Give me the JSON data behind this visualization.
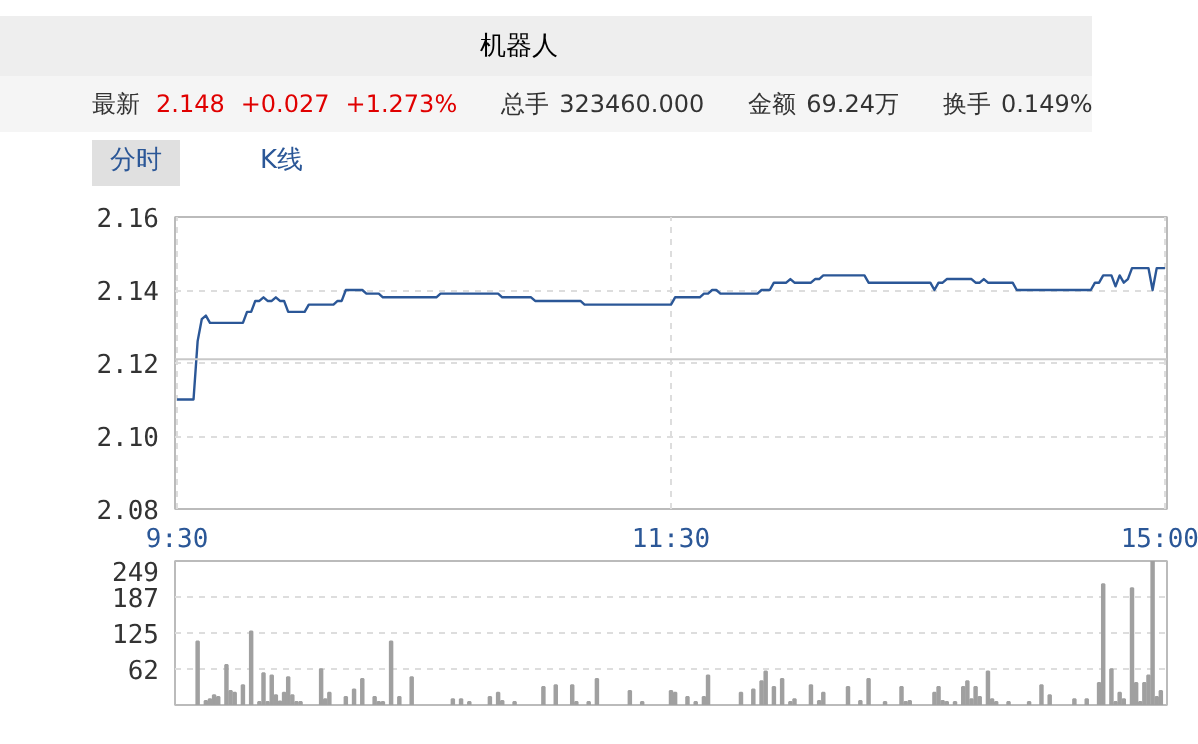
{
  "chart_data": [
    {
      "type": "line",
      "annotations": [
        "机器人",
        "最新",
        "2.148",
        "+0.027",
        "+1.273%",
        "总手",
        "323460.000",
        "金额",
        "69.24万",
        "换手",
        "0.149%",
        "分时",
        "K线"
      ],
      "categories": [
        "9:30",
        null,
        null,
        null,
        null,
        null,
        null,
        null,
        null,
        null,
        null,
        null,
        null,
        null,
        null,
        null,
        null,
        null,
        null,
        null,
        null,
        null,
        null,
        null,
        null,
        null,
        null,
        null,
        null,
        null,
        null,
        null,
        null,
        null,
        null,
        null,
        null,
        null,
        null,
        null,
        null,
        null,
        null,
        null,
        null,
        null,
        null,
        null,
        null,
        null,
        null,
        null,
        null,
        null,
        null,
        null,
        null,
        null,
        null,
        null,
        null,
        null,
        null,
        null,
        null,
        null,
        null,
        null,
        null,
        null,
        null,
        null,
        null,
        null,
        null,
        null,
        null,
        null,
        null,
        null,
        null,
        null,
        null,
        null,
        null,
        null,
        null,
        null,
        null,
        null,
        null,
        null,
        null,
        null,
        null,
        null,
        null,
        null,
        null,
        null,
        null,
        null,
        null,
        null,
        null,
        null,
        null,
        null,
        null,
        null,
        null,
        null,
        null,
        null,
        null,
        null,
        null,
        null,
        null,
        null,
        "11:30",
        null,
        null,
        null,
        null,
        null,
        null,
        null,
        null,
        null,
        null,
        null,
        null,
        null,
        null,
        null,
        null,
        null,
        null,
        null,
        null,
        null,
        null,
        null,
        null,
        null,
        null,
        null,
        null,
        null,
        null,
        null,
        null,
        null,
        null,
        null,
        null,
        null,
        null,
        null,
        null,
        null,
        null,
        null,
        null,
        null,
        null,
        null,
        null,
        null,
        null,
        null,
        null,
        null,
        null,
        null,
        null,
        null,
        null,
        null,
        null,
        null,
        null,
        null,
        null,
        null,
        null,
        null,
        null,
        null,
        null,
        null,
        null,
        null,
        null,
        null,
        null,
        null,
        null,
        null,
        null,
        null,
        null,
        null,
        null,
        null,
        null,
        null,
        null,
        null,
        null,
        null,
        null,
        null,
        null,
        null,
        null,
        null,
        null,
        null,
        null,
        null,
        null,
        null,
        null,
        null,
        null,
        null,
        null,
        null,
        null,
        null,
        null,
        null,
        null,
        null,
        null,
        null,
        null,
        null,
        "15:00"
      ],
      "values": [
        2.11,
        2.11,
        2.11,
        2.11,
        2.11,
        2.126,
        2.132,
        2.133,
        2.131,
        2.131,
        2.131,
        2.131,
        2.131,
        2.131,
        2.131,
        2.131,
        2.131,
        2.134,
        2.134,
        2.137,
        2.137,
        2.138,
        2.137,
        2.137,
        2.138,
        2.137,
        2.137,
        2.134,
        2.134,
        2.134,
        2.134,
        2.134,
        2.136,
        2.136,
        2.136,
        2.136,
        2.136,
        2.136,
        2.136,
        2.137,
        2.137,
        2.14,
        2.14,
        2.14,
        2.14,
        2.14,
        2.139,
        2.139,
        2.139,
        2.139,
        2.138,
        2.138,
        2.138,
        2.138,
        2.138,
        2.138,
        2.138,
        2.138,
        2.138,
        2.138,
        2.138,
        2.138,
        2.138,
        2.138,
        2.139,
        2.139,
        2.139,
        2.139,
        2.139,
        2.139,
        2.139,
        2.139,
        2.139,
        2.139,
        2.139,
        2.139,
        2.139,
        2.139,
        2.139,
        2.138,
        2.138,
        2.138,
        2.138,
        2.138,
        2.138,
        2.138,
        2.138,
        2.137,
        2.137,
        2.137,
        2.137,
        2.137,
        2.137,
        2.137,
        2.137,
        2.137,
        2.137,
        2.137,
        2.137,
        2.136,
        2.136,
        2.136,
        2.136,
        2.136,
        2.136,
        2.136,
        2.136,
        2.136,
        2.136,
        2.136,
        2.136,
        2.136,
        2.136,
        2.136,
        2.136,
        2.136,
        2.136,
        2.136,
        2.136,
        2.136,
        2.136,
        2.138,
        2.138,
        2.138,
        2.138,
        2.138,
        2.138,
        2.138,
        2.139,
        2.139,
        2.14,
        2.14,
        2.139,
        2.139,
        2.139,
        2.139,
        2.139,
        2.139,
        2.139,
        2.139,
        2.139,
        2.139,
        2.14,
        2.14,
        2.14,
        2.142,
        2.142,
        2.142,
        2.142,
        2.143,
        2.142,
        2.142,
        2.142,
        2.142,
        2.142,
        2.143,
        2.143,
        2.144,
        2.144,
        2.144,
        2.144,
        2.144,
        2.144,
        2.144,
        2.144,
        2.144,
        2.144,
        2.144,
        2.142,
        2.142,
        2.142,
        2.142,
        2.142,
        2.142,
        2.142,
        2.142,
        2.142,
        2.142,
        2.142,
        2.142,
        2.142,
        2.142,
        2.142,
        2.142,
        2.14,
        2.142,
        2.142,
        2.143,
        2.143,
        2.143,
        2.143,
        2.143,
        2.143,
        2.143,
        2.142,
        2.142,
        2.143,
        2.142,
        2.142,
        2.142,
        2.142,
        2.142,
        2.142,
        2.142,
        2.14,
        2.14,
        2.14,
        2.14,
        2.14,
        2.14,
        2.14,
        2.14,
        2.14,
        2.14,
        2.14,
        2.14,
        2.14,
        2.14,
        2.14,
        2.14,
        2.14,
        2.14,
        2.14,
        2.142,
        2.142,
        2.144,
        2.144,
        2.144,
        2.141,
        2.144,
        2.142,
        2.143,
        2.146,
        2.146,
        2.146,
        2.146,
        2.146,
        2.14,
        2.146,
        2.146,
        2.146
      ],
      "color": "#2b5797",
      "ylim": [
        2.08,
        2.16
      ],
      "yticks": [
        {
          "value": 2.08,
          "label": "2.08"
        },
        {
          "value": 2.1,
          "label": "2.10"
        },
        {
          "value": 2.12,
          "label": "2.12"
        },
        {
          "value": 2.14,
          "label": "2.14"
        },
        {
          "value": 2.16,
          "label": "2.16"
        }
      ],
      "grid": true,
      "ref_lines": [
        {
          "axis": "y",
          "value": 2.121,
          "color": "#c8c8c8",
          "line_style": "solid"
        }
      ]
    },
    {
      "type": "bar",
      "color": "#a0a0a0",
      "categories": [
        null,
        null,
        null,
        null,
        null,
        null,
        null,
        null,
        null,
        null,
        null,
        null,
        null,
        null,
        null,
        null,
        null,
        null,
        null,
        null,
        null,
        null,
        null,
        null,
        null,
        null,
        null,
        null,
        null,
        null,
        null,
        null,
        null,
        null,
        null,
        null,
        null,
        null,
        null,
        null,
        null,
        null,
        null,
        null,
        null,
        null,
        null,
        null,
        null,
        null,
        null,
        null,
        null,
        null,
        null,
        null,
        null,
        null,
        null,
        null,
        null,
        null,
        null,
        null,
        null,
        null,
        null,
        null,
        null,
        null,
        null,
        null,
        null,
        null,
        null,
        null,
        null,
        null,
        null,
        null,
        null,
        null,
        null,
        null,
        null,
        null,
        null,
        null,
        null,
        null,
        null,
        null,
        null,
        null,
        null,
        null,
        null,
        null,
        null,
        null,
        null,
        null,
        null,
        null,
        null,
        null,
        null,
        null,
        null,
        null,
        null,
        null,
        null,
        null,
        null,
        null,
        null,
        null,
        null,
        null,
        null,
        null,
        null,
        null,
        null,
        null,
        null,
        null,
        null,
        null,
        null,
        null,
        null,
        null,
        null,
        null,
        null,
        null,
        null,
        null,
        null,
        null,
        null,
        null,
        null,
        null,
        null,
        null,
        null,
        null,
        null,
        null,
        null,
        null,
        null,
        null,
        null,
        null,
        null,
        null,
        null,
        null,
        null,
        null,
        null,
        null,
        null,
        null,
        null,
        null,
        null,
        null,
        null,
        null,
        null,
        null,
        null,
        null,
        null,
        null,
        null,
        null,
        null,
        null,
        null,
        null,
        null,
        null,
        null,
        null,
        null,
        null,
        null,
        null,
        null,
        null,
        null,
        null,
        null,
        null,
        null,
        null,
        null,
        null,
        null,
        null,
        null,
        null,
        null,
        null,
        null,
        null,
        null,
        null,
        null,
        null,
        null,
        null,
        null,
        null,
        null,
        null,
        null,
        null,
        null,
        null,
        null,
        null,
        null,
        null,
        null,
        null,
        null,
        null,
        null,
        null,
        null,
        null,
        null,
        null,
        null
      ],
      "values": [
        null,
        null,
        null,
        null,
        null,
        110,
        null,
        7,
        10,
        17,
        14,
        null,
        69,
        24,
        21,
        null,
        34,
        null,
        127,
        null,
        5,
        55,
        5,
        51,
        17,
        6,
        21,
        48,
        17,
        5,
        5,
        null,
        null,
        null,
        null,
        62,
        10,
        21,
        null,
        null,
        null,
        14,
        null,
        27,
        null,
        45,
        null,
        null,
        14,
        5,
        5,
        null,
        110,
        null,
        14,
        null,
        null,
        48,
        null,
        null,
        null,
        null,
        null,
        null,
        null,
        null,
        null,
        10,
        null,
        10,
        null,
        5,
        null,
        null,
        null,
        null,
        14,
        null,
        21,
        7,
        null,
        null,
        5,
        null,
        null,
        null,
        null,
        null,
        null,
        31,
        null,
        null,
        34,
        null,
        null,
        null,
        34,
        5,
        null,
        null,
        5,
        null,
        45,
        null,
        null,
        null,
        null,
        null,
        null,
        null,
        24,
        null,
        null,
        5,
        null,
        null,
        null,
        null,
        null,
        null,
        24,
        21,
        null,
        null,
        14,
        null,
        5,
        null,
        14,
        51,
        null,
        null,
        null,
        null,
        null,
        null,
        null,
        21,
        null,
        null,
        27,
        null,
        41,
        58,
        null,
        31,
        null,
        45,
        null,
        5,
        10,
        null,
        null,
        null,
        34,
        null,
        7,
        21,
        null,
        null,
        null,
        null,
        null,
        31,
        null,
        null,
        7,
        null,
        45,
        null,
        null,
        null,
        5,
        null,
        null,
        null,
        31,
        5,
        7,
        null,
        null,
        null,
        null,
        null,
        21,
        31,
        7,
        5,
        null,
        5,
        null,
        31,
        41,
        10,
        31,
        14,
        null,
        58,
        10,
        5,
        null,
        null,
        5,
        null,
        null,
        null,
        null,
        5,
        null,
        null,
        34,
        null,
        17,
        null,
        null,
        null,
        null,
        null,
        10,
        null,
        null,
        10,
        null,
        null,
        38,
        209,
        null,
        62,
        5,
        21,
        10,
        null,
        202,
        38,
        5,
        38,
        51,
        249,
        14,
        24,
        null
      ],
      "ylim": [
        0,
        249
      ],
      "yticks": [
        62,
        125,
        187,
        249
      ],
      "grid": "y",
      "tick_labels": "y"
    }
  ]
}
